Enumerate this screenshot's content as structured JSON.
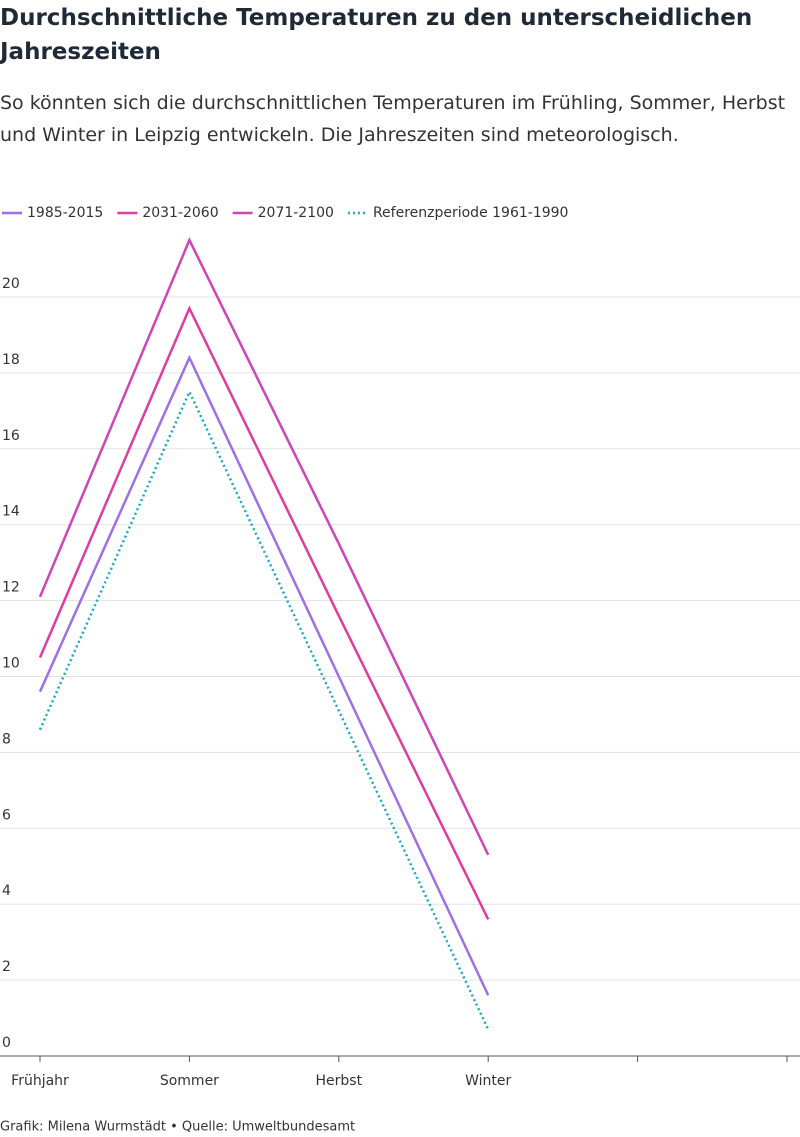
{
  "chart_data": {
    "type": "line",
    "title": "Durchschnittliche Temperaturen zu den unterscheidlichen Jahreszeiten",
    "subtitle": "So könnten sich die durchschnittlichen Temperaturen im Frühling, Sommer, Herbst und Winter in Leipzig entwickeln. Die Jahreszeiten sind meteorologisch.",
    "footer": "Grafik: Milena Wurmstädt • Quelle: Umweltbundesamt",
    "categories": [
      "Frühjahr",
      "Sommer",
      "Herbst",
      "Winter",
      null,
      null
    ],
    "series": [
      {
        "name": "1985-2015",
        "color": "#a06ee6",
        "values": [
          9.6,
          18.4,
          10.0,
          1.6,
          null,
          null
        ],
        "dash": false
      },
      {
        "name": "2031-2060",
        "color": "#e03c9e",
        "values": [
          10.5,
          19.7,
          11.6,
          3.6,
          null,
          null
        ],
        "dash": false
      },
      {
        "name": "2071-2100",
        "color": "#cf45b6",
        "values": [
          12.1,
          21.5,
          13.5,
          5.3,
          null,
          null
        ],
        "dash": false
      },
      {
        "name": "Referenzperiode 1961-1990",
        "color": "#1aa8c2",
        "values": [
          8.6,
          17.5,
          9.1,
          0.7,
          null,
          null
        ],
        "dash": true
      }
    ],
    "ylim": [
      0,
      22
    ],
    "yticks": [
      0,
      2,
      4,
      6,
      8,
      10,
      12,
      14,
      16,
      18,
      20
    ],
    "grid": true,
    "legend": "top-left"
  }
}
